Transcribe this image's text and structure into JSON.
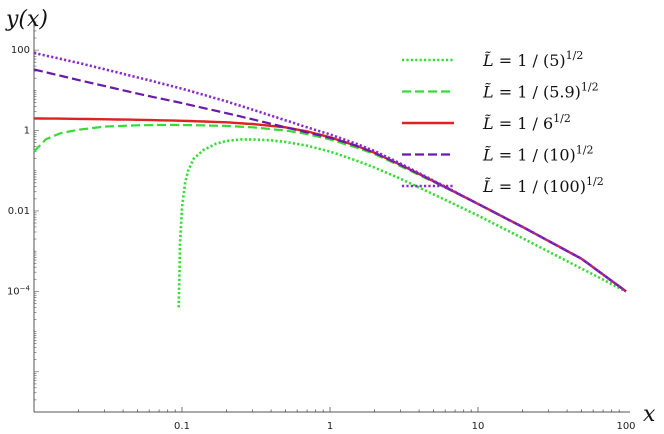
{
  "chart_data": {
    "type": "line",
    "title": "",
    "xlabel": "x",
    "ylabel": "y(x)",
    "xscale": "log",
    "yscale": "log",
    "xlim": [
      0.01,
      100
    ],
    "ylim": [
      1e-07,
      500
    ],
    "grid": false,
    "legend_position": "top-right",
    "xticks": [
      {
        "value": 0.1,
        "label": "0.1"
      },
      {
        "value": 1,
        "label": "1"
      },
      {
        "value": 10,
        "label": "10"
      },
      {
        "value": 100,
        "label": "100"
      }
    ],
    "yticks": [
      {
        "value": 0.0001,
        "label": "10",
        "sup": "−4"
      },
      {
        "value": 0.01,
        "label": "0.01",
        "sup": ""
      },
      {
        "value": 1,
        "label": "1",
        "sup": ""
      },
      {
        "value": 100,
        "label": "100",
        "sup": ""
      }
    ],
    "series": [
      {
        "name": "L̃ = 1 / (5)^1/2",
        "legend": {
          "lhs": "L̃ = 1",
          "rhs": "(5)",
          "exp": "1/2"
        },
        "color": "#33dd33",
        "dash": "dotted",
        "x": [
          0.095,
          0.097,
          0.1,
          0.105,
          0.11,
          0.12,
          0.14,
          0.17,
          0.2,
          0.25,
          0.3,
          0.4,
          0.5,
          0.7,
          1,
          1.5,
          2,
          3,
          5,
          10,
          20,
          50,
          100
        ],
        "y": [
          4e-05,
          0.0015,
          0.012,
          0.05,
          0.1,
          0.2,
          0.33,
          0.47,
          0.55,
          0.6,
          0.6,
          0.57,
          0.52,
          0.42,
          0.3,
          0.18,
          0.12,
          0.063,
          0.026,
          0.0077,
          0.0021,
          0.00037,
          0.0001
        ]
      },
      {
        "name": "L̃ = 1 / (5.9)^1/2",
        "legend": {
          "lhs": "L̃ = 1",
          "rhs": "(5.9)",
          "exp": "1/2"
        },
        "color": "#33dd33",
        "dash": "dashed",
        "x": [
          0.01,
          0.012,
          0.015,
          0.02,
          0.03,
          0.05,
          0.08,
          0.12,
          0.2,
          0.3,
          0.5,
          0.7,
          1,
          1.5,
          2,
          3,
          5,
          10,
          20,
          50,
          100
        ],
        "y": [
          0.3,
          0.6,
          0.85,
          1.05,
          1.25,
          1.35,
          1.38,
          1.36,
          1.3,
          1.2,
          1.0,
          0.82,
          0.6,
          0.38,
          0.26,
          0.13,
          0.053,
          0.015,
          0.004,
          0.00065,
          0.0001
        ]
      },
      {
        "name": "L̃ = 1 / 6^1/2",
        "legend": {
          "lhs": "L̃ = 1",
          "rhs": "6",
          "exp": "1/2"
        },
        "color": "#dd2222",
        "dash": "solid",
        "x": [
          0.01,
          0.02,
          0.05,
          0.1,
          0.2,
          0.3,
          0.5,
          0.7,
          1,
          1.5,
          2,
          3,
          5,
          10,
          20,
          50,
          100
        ],
        "y": [
          2.0,
          1.95,
          1.85,
          1.75,
          1.6,
          1.45,
          1.2,
          0.95,
          0.68,
          0.42,
          0.28,
          0.14,
          0.055,
          0.015,
          0.004,
          0.00065,
          0.0001
        ]
      },
      {
        "name": "L̃ = 1 / (10)^1/2",
        "legend": {
          "lhs": "L̃ = 1",
          "rhs": "(10)",
          "exp": "1/2"
        },
        "color": "#6a1aa8",
        "dash": "dashed",
        "x": [
          0.01,
          0.02,
          0.05,
          0.1,
          0.2,
          0.3,
          0.5,
          0.7,
          1,
          1.5,
          2,
          3,
          5,
          10,
          20,
          50,
          100
        ],
        "y": [
          33,
          18,
          8.3,
          4.8,
          2.7,
          1.9,
          1.2,
          0.9,
          0.66,
          0.42,
          0.28,
          0.14,
          0.055,
          0.015,
          0.004,
          0.00065,
          0.0001
        ]
      },
      {
        "name": "L̃ = 1 / (100)^1/2",
        "legend": {
          "lhs": "L̃ = 1",
          "rhs": "(100)",
          "exp": "1/2"
        },
        "color": "#8a2bc8",
        "dash": "dotted",
        "x": [
          0.01,
          0.02,
          0.05,
          0.1,
          0.2,
          0.3,
          0.5,
          0.7,
          1,
          1.5,
          2,
          3,
          5,
          10,
          20,
          50,
          100
        ],
        "y": [
          85,
          48,
          21,
          11,
          5.3,
          3.3,
          1.8,
          1.2,
          0.8,
          0.47,
          0.31,
          0.15,
          0.057,
          0.015,
          0.004,
          0.00065,
          0.0001
        ]
      }
    ]
  }
}
